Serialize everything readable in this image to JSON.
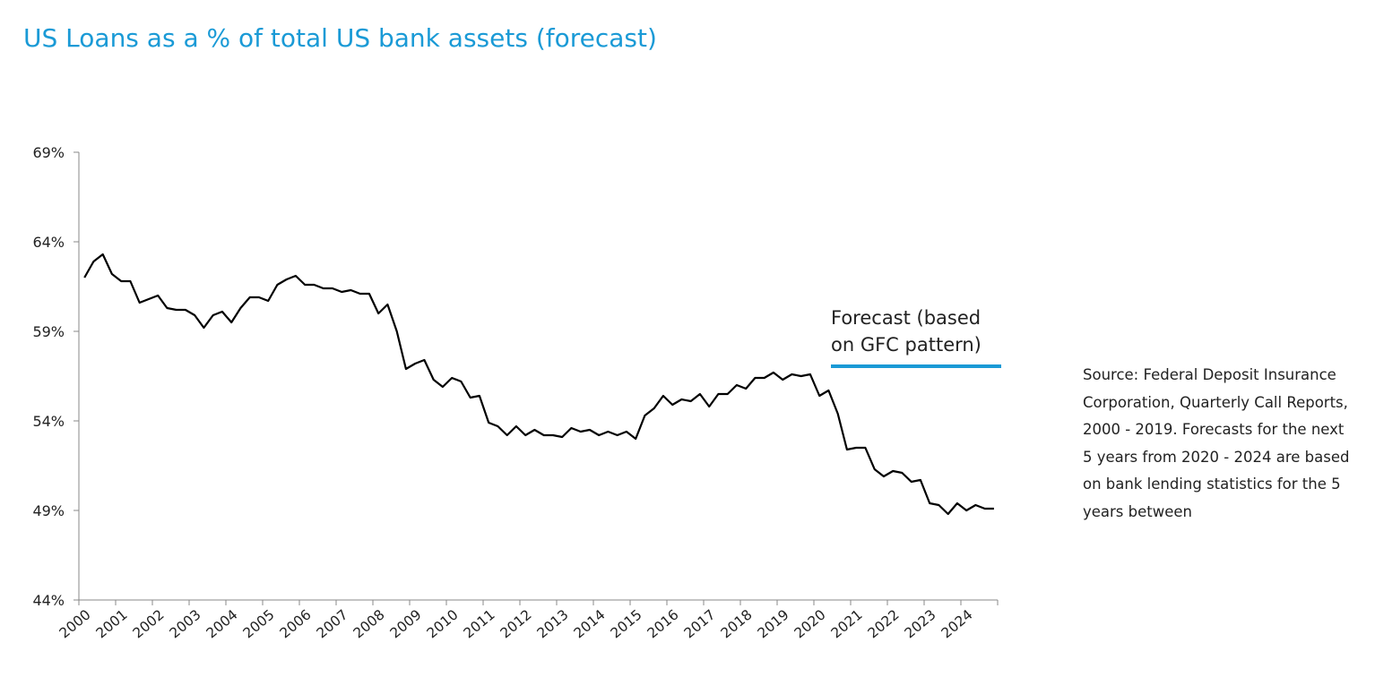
{
  "header": {
    "title": "US Loans as a % of total US bank assets (forecast)"
  },
  "source_note": "Source: Federal Deposit Insurance Corporation, Quarterly Call Reports, 2000 - 2019.  Forecasts for the next 5 years from 2020 - 2024 are based on bank lending statistics for the 5 years between",
  "annotation": {
    "line1": "Forecast (based",
    "line2": "on GFC pattern)",
    "marker_color": "#1a9ad6"
  },
  "colors": {
    "title": "#1a9ad6",
    "line": "#000000",
    "axis": "#888888"
  },
  "chart_data": {
    "type": "line",
    "title": "US Loans as a % of total US bank assets (forecast)",
    "xlabel": "",
    "ylabel": "",
    "ylim": [
      44,
      69
    ],
    "yticks": [
      "69%",
      "64%",
      "59%",
      "54%",
      "49%",
      "44%"
    ],
    "ytick_values": [
      69,
      64,
      59,
      54,
      49,
      44
    ],
    "xticks": [
      "2000",
      "2001",
      "2002",
      "2003",
      "2004",
      "2005",
      "2006",
      "2007",
      "2008",
      "2009",
      "2010",
      "2011",
      "2012",
      "2013",
      "2014",
      "2015",
      "2016",
      "2017",
      "2018",
      "2019",
      "2020",
      "2021",
      "2022",
      "2023",
      "2024"
    ],
    "grid": false,
    "forecast_start": 2020,
    "series": [
      {
        "frequency": "quarterly",
        "start": 2000.0,
        "values": [
          62.0,
          62.9,
          63.3,
          62.2,
          61.8,
          61.8,
          60.6,
          60.8,
          61.0,
          60.3,
          60.2,
          60.2,
          59.9,
          59.2,
          59.9,
          60.1,
          59.5,
          60.3,
          60.9,
          60.9,
          60.7,
          61.6,
          61.9,
          62.1,
          61.6,
          61.6,
          61.4,
          61.4,
          61.2,
          61.3,
          61.1,
          61.1,
          60.0,
          60.5,
          59.0,
          56.9,
          57.2,
          57.4,
          56.3,
          55.9,
          56.4,
          56.2,
          55.3,
          55.4,
          53.9,
          53.7,
          53.2,
          53.7,
          53.2,
          53.5,
          53.2,
          53.2,
          53.1,
          53.6,
          53.4,
          53.5,
          53.2,
          53.4,
          53.2,
          53.4,
          53.0,
          54.3,
          54.7,
          55.4,
          54.9,
          55.2,
          55.1,
          55.5,
          54.8,
          55.5,
          55.5,
          56.0,
          55.8,
          56.4,
          56.4,
          56.7,
          56.3,
          56.6,
          56.5,
          56.6,
          55.4,
          55.7,
          54.4,
          52.4,
          52.5,
          52.5,
          51.3,
          50.9,
          51.2,
          51.1,
          50.6,
          50.7,
          49.4,
          49.3,
          48.8,
          49.4,
          49.0,
          49.3,
          49.1,
          49.1
        ]
      }
    ]
  }
}
